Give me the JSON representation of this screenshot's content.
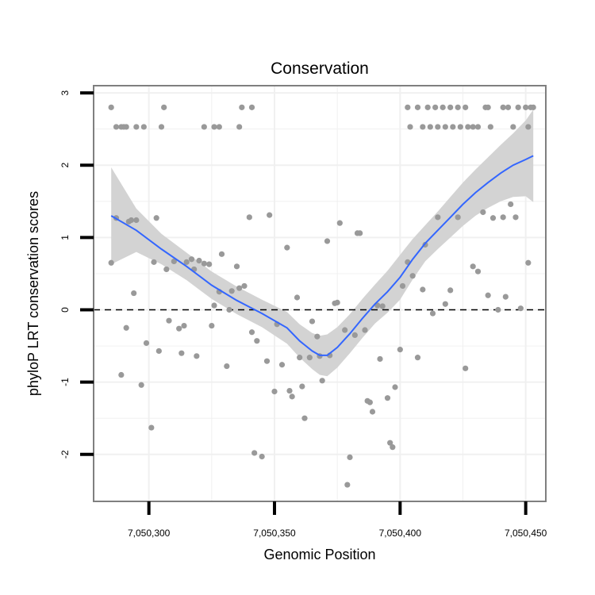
{
  "chart_data": {
    "type": "scatter",
    "title": "Conservation",
    "xlabel": "Genomic Position",
    "ylabel": "phyloP LRT conservation scores",
    "xlim": [
      7050278,
      7050458
    ],
    "ylim": [
      -2.65,
      3.1
    ],
    "x_ticks": [
      7050300,
      7050350,
      7050400,
      7050450
    ],
    "x_tick_labels": [
      "7,050,300",
      "7,050,350",
      "7,050,400",
      "7,050,450"
    ],
    "y_ticks": [
      -2,
      -1,
      0,
      1,
      2,
      3
    ],
    "y_tick_labels": [
      "-2",
      "-1",
      "0",
      "1",
      "2",
      "3"
    ],
    "reference_line": {
      "y": 0,
      "style": "dashed"
    },
    "grid": true,
    "legend": "none",
    "colors": {
      "points": "#999999",
      "smooth_line": "#3366FF",
      "confidence_band": "#d3d3d3",
      "reference_line": "#000000",
      "panel_border": "#7f7f7f",
      "grid": "#f0f0f0"
    },
    "points": [
      [
        7050285,
        2.8
      ],
      [
        7050287,
        2.53
      ],
      [
        7050289,
        2.53
      ],
      [
        7050290,
        2.53
      ],
      [
        7050291,
        2.53
      ],
      [
        7050295,
        2.53
      ],
      [
        7050298,
        2.53
      ],
      [
        7050305,
        2.53
      ],
      [
        7050306,
        2.8
      ],
      [
        7050322,
        2.53
      ],
      [
        7050326,
        2.53
      ],
      [
        7050328,
        2.53
      ],
      [
        7050336,
        2.53
      ],
      [
        7050337,
        2.8
      ],
      [
        7050341,
        2.8
      ],
      [
        7050403,
        2.8
      ],
      [
        7050404,
        2.53
      ],
      [
        7050407,
        2.8
      ],
      [
        7050409,
        2.53
      ],
      [
        7050411,
        2.8
      ],
      [
        7050412,
        2.53
      ],
      [
        7050414,
        2.8
      ],
      [
        7050415,
        2.53
      ],
      [
        7050417,
        2.8
      ],
      [
        7050418,
        2.53
      ],
      [
        7050420,
        2.8
      ],
      [
        7050421,
        2.53
      ],
      [
        7050423,
        2.8
      ],
      [
        7050424,
        2.53
      ],
      [
        7050426,
        2.8
      ],
      [
        7050427,
        2.53
      ],
      [
        7050429,
        2.53
      ],
      [
        7050431,
        2.53
      ],
      [
        7050434,
        2.8
      ],
      [
        7050435,
        2.8
      ],
      [
        7050436,
        2.53
      ],
      [
        7050441,
        2.8
      ],
      [
        7050443,
        2.8
      ],
      [
        7050445,
        2.53
      ],
      [
        7050447,
        2.8
      ],
      [
        7050450,
        2.8
      ],
      [
        7050451,
        2.53
      ],
      [
        7050452,
        2.8
      ],
      [
        7050453,
        2.8
      ],
      [
        7050285,
        0.65
      ],
      [
        7050287,
        1.27
      ],
      [
        7050289,
        -0.9
      ],
      [
        7050291,
        -0.25
      ],
      [
        7050292,
        1.22
      ],
      [
        7050293,
        1.24
      ],
      [
        7050294,
        0.23
      ],
      [
        7050295,
        1.24
      ],
      [
        7050297,
        -1.04
      ],
      [
        7050299,
        -0.46
      ],
      [
        7050301,
        -1.63
      ],
      [
        7050302,
        0.66
      ],
      [
        7050303,
        1.27
      ],
      [
        7050304,
        -0.57
      ],
      [
        7050307,
        0.56
      ],
      [
        7050308,
        -0.15
      ],
      [
        7050310,
        0.67
      ],
      [
        7050312,
        -0.26
      ],
      [
        7050313,
        -0.6
      ],
      [
        7050314,
        -0.22
      ],
      [
        7050315,
        0.66
      ],
      [
        7050317,
        0.7
      ],
      [
        7050318,
        0.56
      ],
      [
        7050319,
        -0.64
      ],
      [
        7050320,
        0.68
      ],
      [
        7050322,
        0.64
      ],
      [
        7050324,
        0.63
      ],
      [
        7050325,
        -0.22
      ],
      [
        7050326,
        0.06
      ],
      [
        7050328,
        0.25
      ],
      [
        7050329,
        0.77
      ],
      [
        7050331,
        -0.78
      ],
      [
        7050332,
        0.0
      ],
      [
        7050333,
        0.26
      ],
      [
        7050335,
        0.6
      ],
      [
        7050336,
        0.3
      ],
      [
        7050338,
        0.33
      ],
      [
        7050340,
        1.28
      ],
      [
        7050341,
        -0.31
      ],
      [
        7050342,
        -1.98
      ],
      [
        7050343,
        -0.43
      ],
      [
        7050345,
        -2.03
      ],
      [
        7050347,
        -0.71
      ],
      [
        7050348,
        1.31
      ],
      [
        7050350,
        -1.13
      ],
      [
        7050351,
        -0.2
      ],
      [
        7050353,
        -0.76
      ],
      [
        7050355,
        0.86
      ],
      [
        7050356,
        -1.12
      ],
      [
        7050357,
        -1.2
      ],
      [
        7050359,
        0.17
      ],
      [
        7050360,
        -0.66
      ],
      [
        7050361,
        -1.06
      ],
      [
        7050362,
        -1.5
      ],
      [
        7050364,
        -0.66
      ],
      [
        7050365,
        -0.16
      ],
      [
        7050367,
        -0.37
      ],
      [
        7050368,
        -0.64
      ],
      [
        7050369,
        -0.98
      ],
      [
        7050371,
        0.95
      ],
      [
        7050372,
        -0.63
      ],
      [
        7050374,
        0.09
      ],
      [
        7050375,
        0.1
      ],
      [
        7050376,
        1.2
      ],
      [
        7050378,
        -0.28
      ],
      [
        7050379,
        -2.42
      ],
      [
        7050380,
        -2.04
      ],
      [
        7050382,
        -0.35
      ],
      [
        7050383,
        1.06
      ],
      [
        7050384,
        1.06
      ],
      [
        7050386,
        -0.28
      ],
      [
        7050387,
        -1.26
      ],
      [
        7050388,
        -1.28
      ],
      [
        7050389,
        -1.41
      ],
      [
        7050391,
        0.06
      ],
      [
        7050392,
        -0.68
      ],
      [
        7050393,
        0.05
      ],
      [
        7050395,
        -1.22
      ],
      [
        7050396,
        -1.84
      ],
      [
        7050397,
        -1.9
      ],
      [
        7050398,
        -1.07
      ],
      [
        7050400,
        -0.55
      ],
      [
        7050401,
        0.33
      ],
      [
        7050403,
        0.66
      ],
      [
        7050405,
        0.47
      ],
      [
        7050407,
        -0.66
      ],
      [
        7050409,
        0.28
      ],
      [
        7050410,
        0.9
      ],
      [
        7050413,
        -0.05
      ],
      [
        7050415,
        1.28
      ],
      [
        7050418,
        0.08
      ],
      [
        7050420,
        0.27
      ],
      [
        7050423,
        1.28
      ],
      [
        7050426,
        -0.81
      ],
      [
        7050429,
        0.6
      ],
      [
        7050431,
        0.53
      ],
      [
        7050433,
        1.35
      ],
      [
        7050435,
        0.2
      ],
      [
        7050437,
        1.27
      ],
      [
        7050439,
        0.0
      ],
      [
        7050441,
        1.28
      ],
      [
        7050442,
        0.18
      ],
      [
        7050444,
        1.46
      ],
      [
        7050446,
        1.28
      ],
      [
        7050448,
        0.02
      ],
      [
        7050451,
        0.65
      ]
    ],
    "smooth_line": [
      [
        7050285,
        1.3
      ],
      [
        7050295,
        1.1
      ],
      [
        7050305,
        0.84
      ],
      [
        7050315,
        0.6
      ],
      [
        7050325,
        0.34
      ],
      [
        7050335,
        0.13
      ],
      [
        7050345,
        -0.05
      ],
      [
        7050355,
        -0.25
      ],
      [
        7050360,
        -0.43
      ],
      [
        7050365,
        -0.57
      ],
      [
        7050368,
        -0.63
      ],
      [
        7050371,
        -0.63
      ],
      [
        7050375,
        -0.52
      ],
      [
        7050380,
        -0.33
      ],
      [
        7050385,
        -0.12
      ],
      [
        7050390,
        0.08
      ],
      [
        7050395,
        0.25
      ],
      [
        7050400,
        0.45
      ],
      [
        7050405,
        0.7
      ],
      [
        7050410,
        0.92
      ],
      [
        7050415,
        1.1
      ],
      [
        7050420,
        1.28
      ],
      [
        7050425,
        1.46
      ],
      [
        7050430,
        1.62
      ],
      [
        7050435,
        1.76
      ],
      [
        7050440,
        1.89
      ],
      [
        7050445,
        2.0
      ],
      [
        7050450,
        2.08
      ],
      [
        7050453,
        2.13
      ]
    ],
    "band_upper": [
      [
        7050285,
        1.97
      ],
      [
        7050295,
        1.4
      ],
      [
        7050305,
        1.05
      ],
      [
        7050315,
        0.79
      ],
      [
        7050325,
        0.53
      ],
      [
        7050335,
        0.32
      ],
      [
        7050345,
        0.14
      ],
      [
        7050355,
        -0.03
      ],
      [
        7050360,
        -0.2
      ],
      [
        7050365,
        -0.32
      ],
      [
        7050368,
        -0.36
      ],
      [
        7050371,
        -0.34
      ],
      [
        7050375,
        -0.24
      ],
      [
        7050380,
        -0.06
      ],
      [
        7050385,
        0.15
      ],
      [
        7050390,
        0.35
      ],
      [
        7050395,
        0.54
      ],
      [
        7050400,
        0.76
      ],
      [
        7050405,
        0.98
      ],
      [
        7050410,
        1.17
      ],
      [
        7050415,
        1.36
      ],
      [
        7050420,
        1.56
      ],
      [
        7050425,
        1.76
      ],
      [
        7050430,
        1.94
      ],
      [
        7050435,
        2.11
      ],
      [
        7050440,
        2.28
      ],
      [
        7050445,
        2.44
      ],
      [
        7050450,
        2.62
      ],
      [
        7050453,
        2.77
      ]
    ],
    "band_lower": [
      [
        7050285,
        0.63
      ],
      [
        7050295,
        0.8
      ],
      [
        7050305,
        0.63
      ],
      [
        7050315,
        0.41
      ],
      [
        7050325,
        0.15
      ],
      [
        7050335,
        -0.06
      ],
      [
        7050345,
        -0.24
      ],
      [
        7050355,
        -0.47
      ],
      [
        7050360,
        -0.66
      ],
      [
        7050365,
        -0.82
      ],
      [
        7050368,
        -0.9
      ],
      [
        7050371,
        -0.92
      ],
      [
        7050375,
        -0.8
      ],
      [
        7050380,
        -0.6
      ],
      [
        7050385,
        -0.39
      ],
      [
        7050390,
        -0.19
      ],
      [
        7050395,
        -0.04
      ],
      [
        7050400,
        0.14
      ],
      [
        7050405,
        0.42
      ],
      [
        7050410,
        0.67
      ],
      [
        7050415,
        0.84
      ],
      [
        7050420,
        1.0
      ],
      [
        7050425,
        1.16
      ],
      [
        7050430,
        1.3
      ],
      [
        7050435,
        1.41
      ],
      [
        7050440,
        1.5
      ],
      [
        7050445,
        1.56
      ],
      [
        7050450,
        1.57
      ],
      [
        7050453,
        1.49
      ]
    ]
  }
}
